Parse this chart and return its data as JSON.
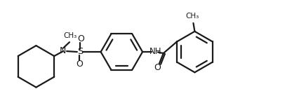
{
  "bg_color": "#ffffff",
  "line_color": "#1a1a1a",
  "line_width": 1.6,
  "text_color": "#1a1a1a",
  "figsize": [
    4.26,
    1.57
  ],
  "dpi": 100,
  "xlim": [
    0,
    4.26
  ],
  "ylim": [
    0,
    1.57
  ]
}
